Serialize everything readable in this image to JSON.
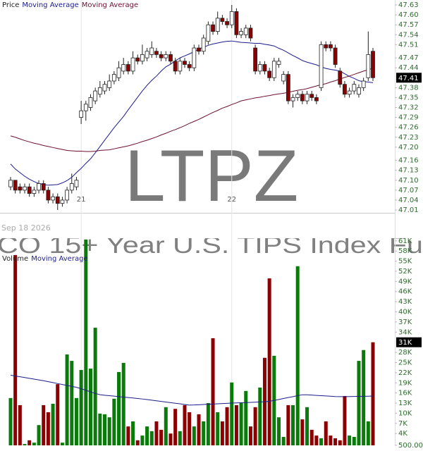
{
  "date_label": "Sep 18 2026",
  "fund_name": "CO 15+ Year U.S. TIPS Index Fu",
  "chart_data": [
    {
      "type": "candlestick",
      "watermark": "LTPZ",
      "categories": [
        null,
        null,
        null,
        null,
        null,
        null,
        null,
        null,
        null,
        null,
        null,
        null,
        null,
        null,
        null,
        "21",
        null,
        null,
        null,
        null,
        null,
        null,
        null,
        null,
        null,
        null,
        null,
        null,
        null,
        null,
        null,
        null,
        null,
        null,
        null,
        null,
        null,
        null,
        null,
        null,
        null,
        null,
        null,
        null,
        null,
        null,
        null,
        "22",
        null,
        null,
        null,
        null,
        null,
        null,
        null,
        null,
        null,
        null,
        null,
        null,
        null,
        null,
        null,
        null,
        null,
        null,
        null,
        null,
        null,
        null,
        null,
        null,
        null,
        null,
        null,
        null,
        null,
        null
      ],
      "series": [
        {
          "name": "Price",
          "color": "#222222",
          "up_color": "#ffffff",
          "down_color": "#8b0000",
          "open": [
            47.08,
            47.1,
            47.08,
            47.07,
            47.08,
            47.06,
            47.07,
            47.09,
            47.07,
            47.04,
            47.05,
            47.03,
            47.04,
            47.07,
            47.08,
            47.29,
            47.31,
            47.32,
            47.34,
            47.36,
            47.37,
            47.38,
            47.4,
            47.41,
            47.43,
            47.45,
            47.43,
            47.47,
            47.46,
            47.47,
            47.48,
            47.49,
            47.48,
            47.47,
            47.48,
            47.46,
            47.43,
            47.46,
            47.45,
            47.44,
            47.5,
            47.49,
            47.52,
            47.57,
            47.55,
            47.59,
            47.58,
            47.57,
            47.61,
            47.54,
            47.54,
            47.56,
            47.5,
            47.43,
            47.45,
            47.43,
            47.41,
            47.45,
            47.4,
            47.42,
            47.34,
            47.35,
            47.36,
            47.34,
            47.36,
            47.35,
            47.38,
            47.51,
            47.51,
            47.5,
            47.43,
            47.39,
            47.36,
            47.37,
            47.36,
            47.38,
            47.41,
            47.49
          ],
          "high": [
            47.11,
            47.1,
            47.09,
            47.09,
            47.09,
            47.08,
            47.1,
            47.1,
            47.08,
            47.06,
            47.06,
            47.05,
            47.08,
            47.12,
            47.11,
            47.34,
            47.34,
            47.36,
            47.38,
            47.4,
            47.4,
            47.42,
            47.43,
            47.46,
            47.47,
            47.46,
            47.49,
            47.48,
            47.51,
            47.5,
            47.52,
            47.5,
            47.49,
            47.49,
            47.49,
            47.47,
            47.47,
            47.47,
            47.46,
            47.51,
            47.51,
            47.54,
            47.58,
            47.58,
            47.61,
            47.6,
            47.59,
            47.63,
            47.62,
            47.56,
            47.57,
            47.57,
            47.51,
            47.46,
            47.46,
            47.44,
            47.47,
            47.47,
            47.43,
            47.43,
            47.36,
            47.37,
            47.37,
            47.37,
            47.37,
            47.36,
            47.52,
            47.52,
            47.52,
            47.51,
            47.44,
            47.4,
            47.38,
            47.4,
            47.39,
            47.41,
            47.55,
            47.5
          ],
          "low": [
            47.07,
            47.06,
            47.06,
            47.06,
            47.05,
            47.05,
            47.06,
            47.06,
            47.03,
            47.03,
            47.01,
            47.02,
            47.03,
            47.06,
            47.07,
            47.27,
            47.28,
            47.31,
            47.33,
            47.35,
            47.36,
            47.37,
            47.39,
            47.4,
            47.42,
            47.42,
            47.42,
            47.45,
            47.45,
            47.46,
            47.47,
            47.47,
            47.46,
            47.46,
            47.45,
            47.42,
            47.42,
            47.44,
            47.43,
            47.43,
            47.48,
            47.48,
            47.51,
            47.54,
            47.54,
            47.57,
            47.56,
            47.56,
            47.53,
            47.53,
            47.53,
            47.52,
            47.42,
            47.42,
            47.42,
            47.4,
            47.4,
            47.44,
            47.39,
            47.33,
            47.32,
            47.34,
            47.33,
            47.33,
            47.34,
            47.33,
            47.37,
            47.49,
            47.49,
            47.44,
            47.38,
            47.35,
            47.35,
            47.36,
            47.35,
            47.37,
            47.4,
            47.4
          ],
          "close": [
            47.1,
            47.07,
            47.07,
            47.08,
            47.06,
            47.07,
            47.09,
            47.07,
            47.04,
            47.05,
            47.03,
            47.04,
            47.07,
            47.09,
            47.1,
            47.31,
            47.33,
            47.35,
            47.37,
            47.38,
            47.39,
            47.4,
            47.42,
            47.44,
            47.45,
            47.43,
            47.47,
            47.46,
            47.48,
            47.49,
            47.5,
            47.48,
            47.47,
            47.48,
            47.46,
            47.43,
            47.46,
            47.45,
            47.44,
            47.5,
            47.49,
            47.53,
            47.57,
            47.55,
            47.59,
            47.58,
            47.57,
            47.61,
            47.54,
            47.55,
            47.56,
            47.53,
            47.43,
            47.45,
            47.43,
            47.41,
            47.46,
            47.46,
            47.42,
            47.34,
            47.35,
            47.36,
            47.34,
            47.36,
            47.35,
            47.34,
            47.51,
            47.5,
            47.5,
            47.45,
            47.39,
            47.36,
            47.37,
            47.39,
            47.38,
            47.4,
            47.48,
            47.41
          ]
        },
        {
          "name": "Moving Average",
          "color": "#1c1c8c",
          "values": [
            47.149,
            47.134,
            47.123,
            47.112,
            47.103,
            47.096,
            47.09,
            47.087,
            47.085,
            47.086,
            47.087,
            47.092,
            47.099,
            47.109,
            47.123,
            47.136,
            47.151,
            47.165,
            47.183,
            47.202,
            47.221,
            47.24,
            47.259,
            47.276,
            47.293,
            47.313,
            47.332,
            47.351,
            47.37,
            47.387,
            47.402,
            47.415,
            47.43,
            47.443,
            47.451,
            47.461,
            47.47,
            47.476,
            47.482,
            47.489,
            47.497,
            47.502,
            47.508,
            47.512,
            47.515,
            47.518,
            47.52,
            47.521,
            47.519,
            47.517,
            47.516,
            47.515,
            47.514,
            47.514,
            47.511,
            47.509,
            47.506,
            47.499,
            47.493,
            47.485,
            47.477,
            47.47,
            47.462,
            47.457,
            47.453,
            47.449,
            47.443,
            47.438,
            47.435,
            47.433,
            47.43,
            47.422,
            47.414,
            47.408,
            47.401,
            47.398,
            47.397,
            47.395
          ]
        },
        {
          "name": "Moving Average",
          "color": "#6b1030",
          "values": [
            47.234,
            47.23,
            47.225,
            47.22,
            47.216,
            47.212,
            47.209,
            47.205,
            47.202,
            47.199,
            47.196,
            47.193,
            47.19,
            47.189,
            47.188,
            47.188,
            47.187,
            47.187,
            47.188,
            47.19,
            47.191,
            47.192,
            47.195,
            47.198,
            47.201,
            47.204,
            47.208,
            47.212,
            47.217,
            47.221,
            47.226,
            47.231,
            47.237,
            47.242,
            47.248,
            47.253,
            47.259,
            47.265,
            47.272,
            47.278,
            47.284,
            47.291,
            47.298,
            47.305,
            47.311,
            47.318,
            47.323,
            47.329,
            47.334,
            47.34,
            47.343,
            47.346,
            47.349,
            47.351,
            47.354,
            47.356,
            47.359,
            47.361,
            47.363,
            47.366,
            47.369,
            47.372,
            47.374,
            47.377,
            47.381,
            47.385,
            47.389,
            47.392,
            47.397,
            47.401,
            47.406,
            47.411,
            47.415,
            47.42,
            47.425,
            47.43,
            47.434,
            47.439
          ]
        }
      ],
      "ylim": [
        47.0,
        47.645
      ],
      "yticks": [
        47.63,
        {
          "value": 47.6,
          "label": "47.60"
        },
        47.57,
        47.54,
        47.51,
        47.47,
        47.44,
        47.38,
        47.35,
        47.32,
        47.29,
        47.26,
        47.23,
        {
          "value": 47.2,
          "label": "47.20"
        },
        47.16,
        47.13,
        {
          "value": 47.1,
          "label": "47.10"
        },
        47.07,
        47.04,
        47.01
      ],
      "last_value": 47.41
    },
    {
      "type": "bar",
      "series": [
        {
          "name": "Volume",
          "color": "#222222",
          "up_color": "#0a7a0a",
          "down_color": "#8b0000",
          "values": [
            14500,
            56800,
            12400,
            900,
            2000,
            1300,
            6500,
            12400,
            10300,
            12800,
            18600,
            1300,
            27400,
            25500,
            14500,
            22800,
            61400,
            23200,
            35300,
            9900,
            9700,
            8800,
            14300,
            22200,
            24900,
            6100,
            7600,
            2000,
            3400,
            6100,
            4700,
            7600,
            5100,
            11800,
            4000,
            11300,
            4700,
            12400,
            10300,
            6100,
            9700,
            7600,
            13000,
            32200,
            10300,
            7600,
            11800,
            19100,
            12400,
            13000,
            16600,
            6100,
            11800,
            17600,
            26400,
            49900,
            27000,
            8800,
            3000,
            12400,
            12400,
            53500,
            8200,
            11800,
            5100,
            3400,
            2600,
            7600,
            3400,
            2600,
            2000,
            15100,
            3400,
            3000,
            25500,
            28700,
            7600,
            31000
          ]
        },
        {
          "name": "Moving Average",
          "color": "#1c1c8c",
          "values": [
            21260,
            21020,
            20790,
            20560,
            20330,
            20100,
            19870,
            19620,
            19340,
            19070,
            18780,
            18510,
            18230,
            17950,
            17670,
            17260,
            16790,
            16320,
            15860,
            15480,
            15340,
            15200,
            15060,
            14920,
            14790,
            14650,
            14510,
            14370,
            14220,
            14040,
            13860,
            13680,
            13500,
            13320,
            13140,
            12960,
            12790,
            12600,
            12420,
            12450,
            12520,
            12590,
            12660,
            12730,
            12800,
            12870,
            12940,
            13010,
            13060,
            13120,
            13170,
            13220,
            13280,
            13340,
            13390,
            13520,
            13800,
            14080,
            14360,
            14640,
            14910,
            15190,
            15470,
            15450,
            15370,
            15280,
            15200,
            15120,
            15030,
            14950,
            14900,
            14920,
            14930,
            14960,
            14990,
            15020,
            15050,
            15080
          ]
        }
      ],
      "ylim": [
        500,
        62000
      ],
      "yticks": [
        {
          "value": 61000,
          "label": "61K"
        },
        {
          "value": 58000,
          "label": "58K"
        },
        {
          "value": 55000,
          "label": "55K"
        },
        {
          "value": 52000,
          "label": "52K"
        },
        {
          "value": 49000,
          "label": "49K"
        },
        {
          "value": 46000,
          "label": "46K"
        },
        {
          "value": 43000,
          "label": "43K"
        },
        {
          "value": 40000,
          "label": "40K"
        },
        {
          "value": 37000,
          "label": "37K"
        },
        {
          "value": 34000,
          "label": "34K"
        },
        {
          "value": 28000,
          "label": "28K"
        },
        {
          "value": 25000,
          "label": "25K"
        },
        {
          "value": 22000,
          "label": "22K"
        },
        {
          "value": 19000,
          "label": "19K"
        },
        {
          "value": 16000,
          "label": "16K"
        },
        {
          "value": 13000,
          "label": "13K"
        },
        {
          "value": 10000,
          "label": "10K"
        },
        {
          "value": 7000,
          "label": "7K"
        },
        {
          "value": 4000,
          "label": "4K"
        },
        {
          "value": 500,
          "label": "500.00"
        }
      ],
      "last_value": {
        "value": 31000,
        "label": "31K"
      }
    }
  ]
}
